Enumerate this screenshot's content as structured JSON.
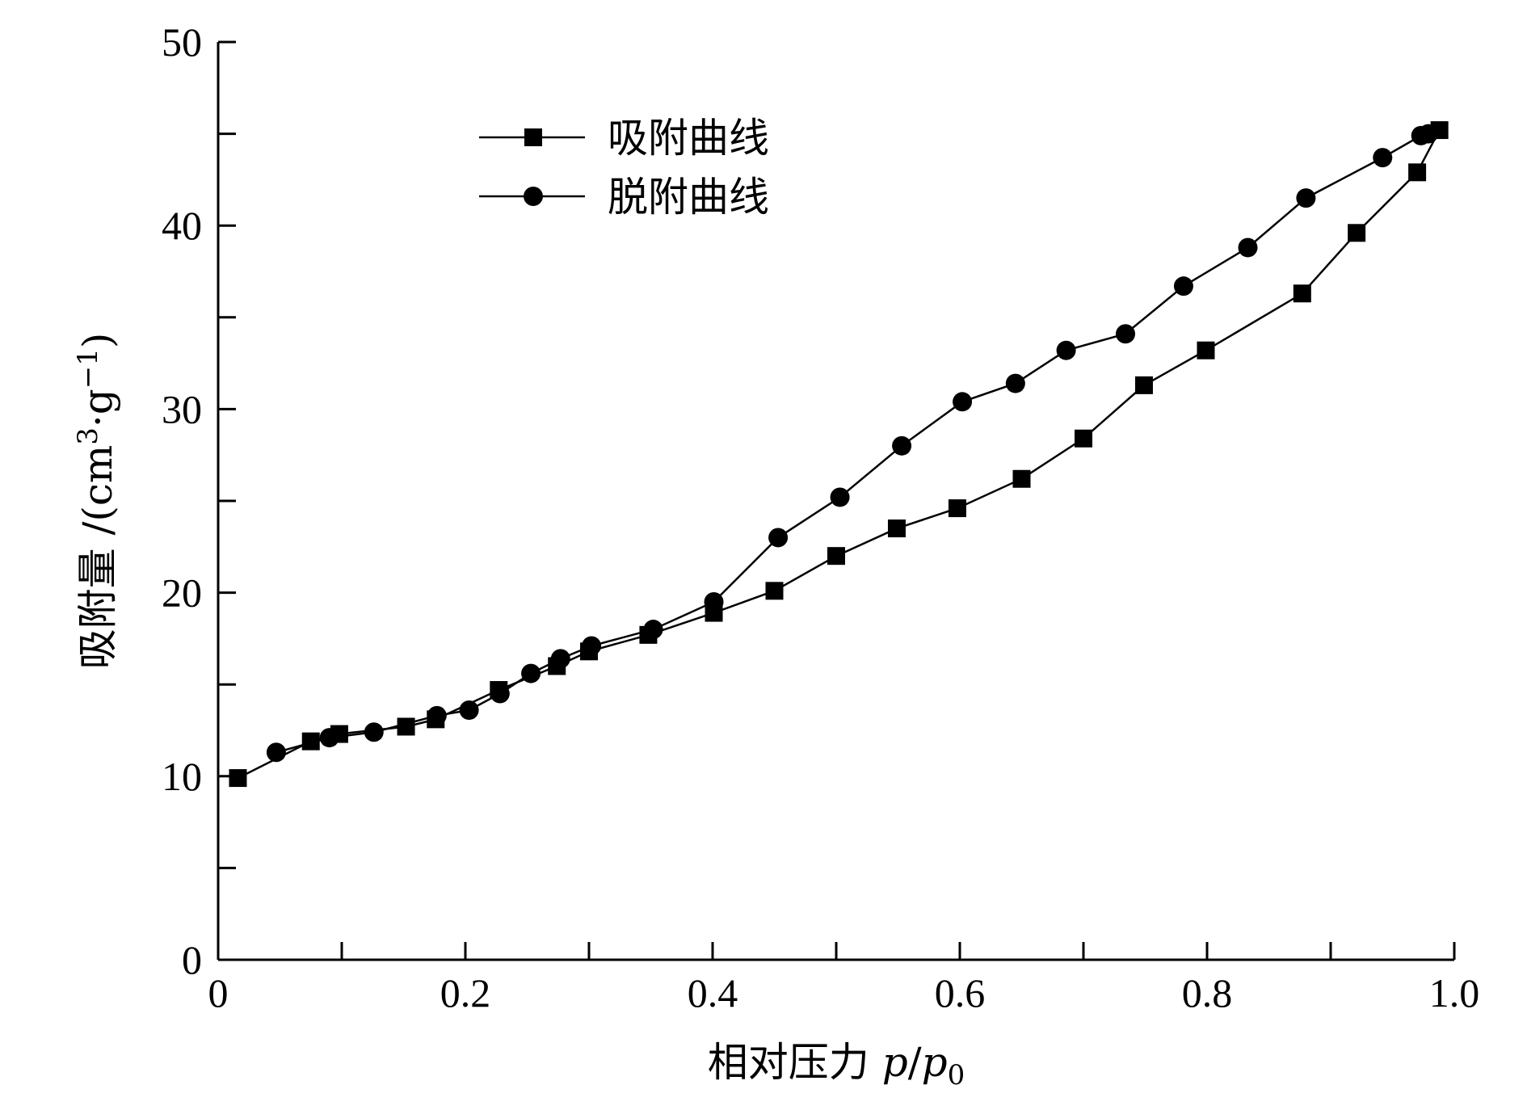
{
  "chart_data": {
    "type": "line",
    "title": "",
    "xlabel": "相对压力 p/p0",
    "xlabel_parts": {
      "text": "相对压力 ",
      "var1": "p",
      "slash": "/",
      "var2": "p",
      "sub": "0"
    },
    "ylabel": "吸附量 /(cm3·g−1)",
    "ylabel_parts": {
      "text": "吸附量 /(cm",
      "sup1": "3",
      "mid": "·g",
      "sup2": "−1",
      "end": ")"
    },
    "xlim": [
      0,
      1.0
    ],
    "ylim": [
      0,
      50
    ],
    "xticks": [
      0,
      0.2,
      0.4,
      0.6,
      0.8,
      1.0
    ],
    "xtick_labels": [
      "0",
      "0.2",
      "0.4",
      "0.6",
      "0.8",
      "1.0"
    ],
    "yticks": [
      0,
      10,
      20,
      30,
      40,
      50
    ],
    "ytick_labels": [
      "0",
      "10",
      "20",
      "30",
      "40",
      "50"
    ],
    "grid": false,
    "legend_position": "top-left",
    "series": [
      {
        "name": "吸附曲线",
        "marker": "square",
        "color": "#000000",
        "x": [
          0.016,
          0.075,
          0.098,
          0.152,
          0.176,
          0.227,
          0.274,
          0.3,
          0.348,
          0.401,
          0.45,
          0.5,
          0.549,
          0.598,
          0.65,
          0.7,
          0.749,
          0.799,
          0.877,
          0.921,
          0.97,
          0.988
        ],
        "y": [
          9.9,
          11.9,
          12.3,
          12.7,
          13.1,
          14.7,
          16.0,
          16.8,
          17.7,
          18.9,
          20.1,
          22.0,
          23.5,
          24.6,
          26.2,
          28.4,
          31.3,
          33.2,
          36.3,
          39.6,
          42.9,
          45.2
        ]
      },
      {
        "name": "脱附曲线",
        "marker": "circle",
        "color": "#000000",
        "x": [
          0.047,
          0.09,
          0.126,
          0.177,
          0.203,
          0.228,
          0.253,
          0.277,
          0.302,
          0.352,
          0.401,
          0.453,
          0.503,
          0.553,
          0.602,
          0.645,
          0.686,
          0.734,
          0.781,
          0.833,
          0.88,
          0.942,
          0.973,
          0.979
        ],
        "y": [
          11.3,
          12.1,
          12.4,
          13.3,
          13.6,
          14.5,
          15.6,
          16.4,
          17.1,
          18.0,
          19.5,
          23.0,
          25.2,
          28.0,
          30.4,
          31.4,
          33.2,
          34.1,
          36.7,
          38.8,
          41.5,
          43.7,
          44.9,
          45.0
        ]
      }
    ]
  }
}
